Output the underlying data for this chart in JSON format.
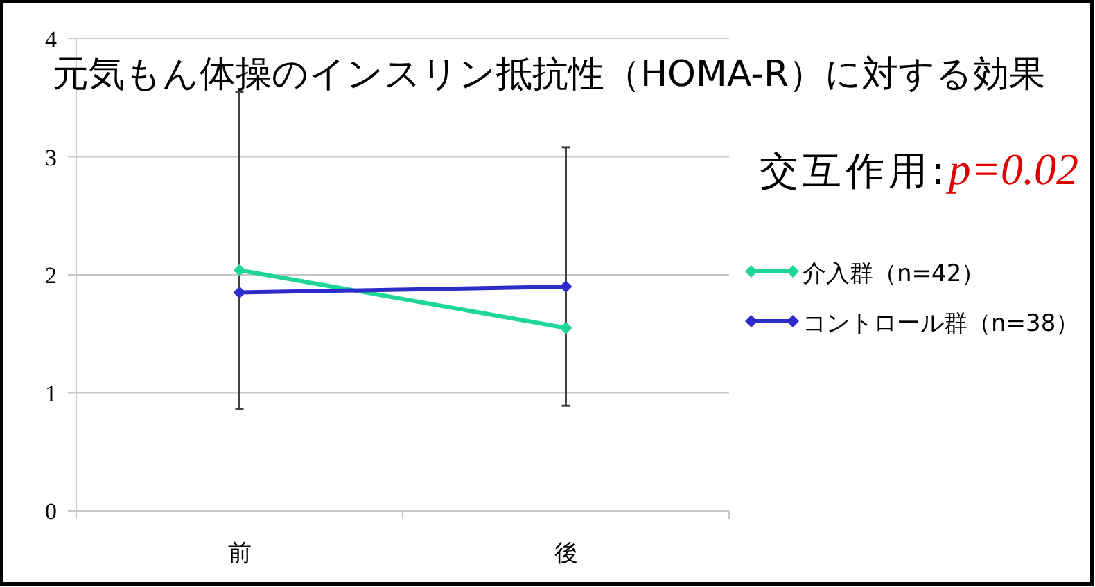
{
  "chart_data": {
    "type": "line",
    "title": "元気もん体操のインスリン抵抗性（HOMA-R）に対する効果",
    "annotations": [
      "交互作用:",
      "p=0.02"
    ],
    "categories": [
      "前",
      "後"
    ],
    "series": [
      {
        "name": "介入群（n=42）",
        "color": "#1fd69a",
        "values": [
          2.04,
          1.55
        ],
        "errors": [
          [
            0.86,
            3.55
          ],
          [
            0.89,
            3.08
          ]
        ]
      },
      {
        "name": "コントロール群（n=38）",
        "color": "#2c2cc8",
        "values": [
          1.85,
          1.9
        ]
      }
    ],
    "ylim": [
      0,
      4
    ],
    "yticks": [
      0,
      1,
      2,
      3,
      4
    ],
    "grid": "y",
    "legend": "right",
    "marker": "diamond",
    "line_style": "solid"
  }
}
